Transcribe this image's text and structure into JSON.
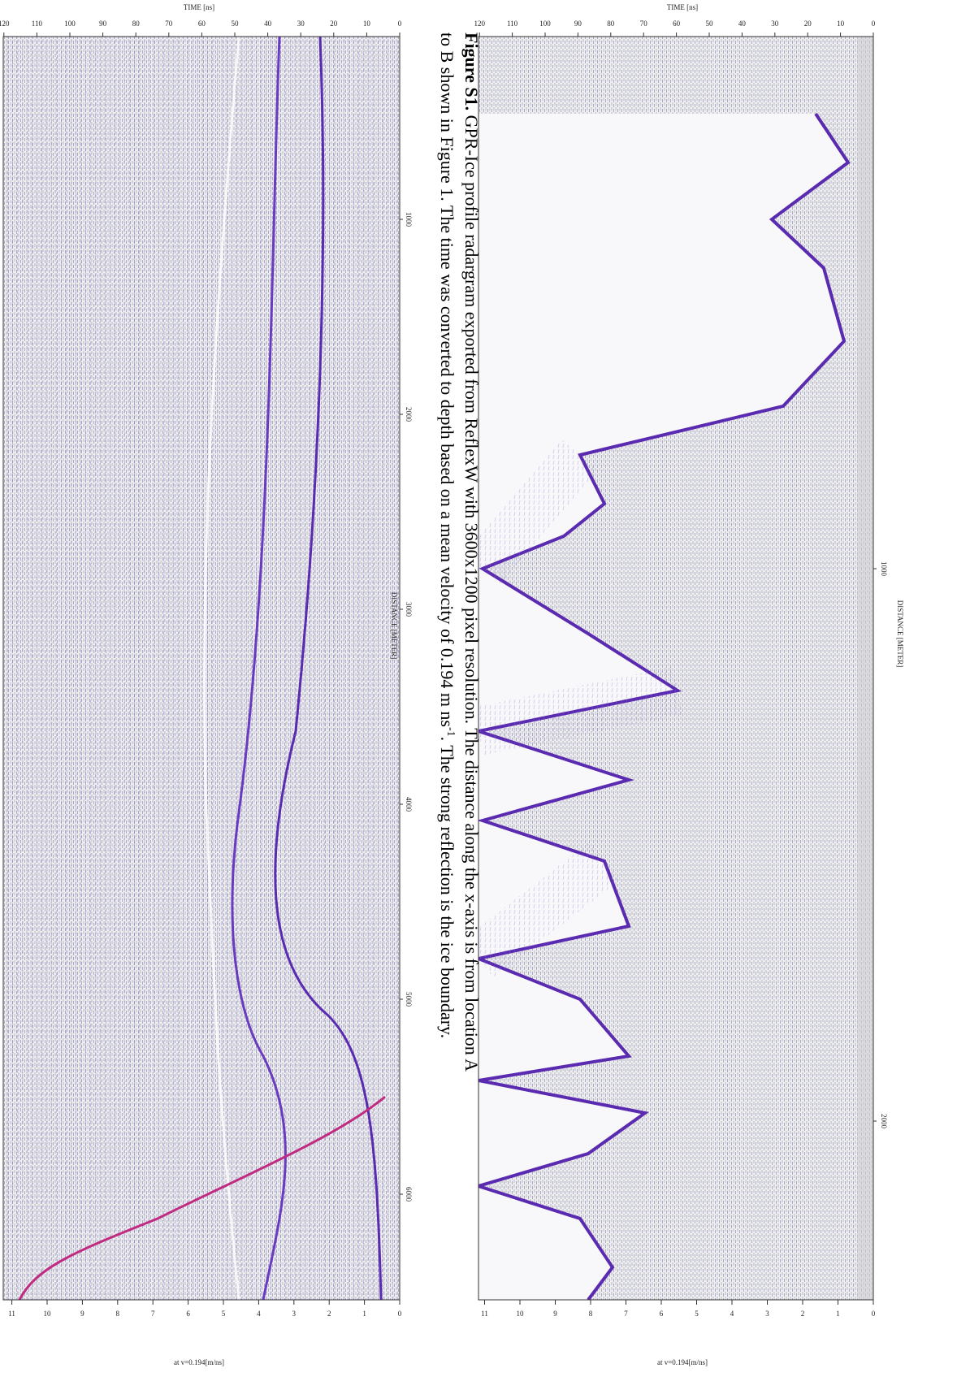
{
  "caption": {
    "label": "Figure S1.",
    "line1": "GPR-Ice profile radargram exported from ReflexW with 3600x1200 pixel resolution. The distance along the x-axis is from location A",
    "line2": "to B shown in Figure 1. The time was converted to depth based on a mean velocity of 0.194 m ns",
    "superscript": "-1",
    "line2_end": ". The strong reflection is the ice boundary."
  },
  "panels": [
    {
      "time_label": "TIME [ns]",
      "distance_label": "DISTANCE [METER]",
      "depth_label": "at v=0.194[m/ns]",
      "time_ticks": [
        0,
        10,
        20,
        30,
        40,
        50,
        60,
        70,
        80,
        90,
        100,
        110,
        120
      ],
      "distance_ticks": [
        1000,
        2000
      ],
      "depth_ticks": [
        0,
        1,
        2,
        3,
        4,
        5,
        6,
        7,
        8,
        9,
        10,
        11
      ]
    },
    {
      "time_label": "TIME [ns]",
      "distance_label": "DISTANCE [METER]",
      "depth_label": "at v=0.194[m/ns]",
      "time_ticks": [
        0,
        10,
        20,
        30,
        40,
        50,
        60,
        70,
        80,
        90,
        100,
        110,
        120
      ],
      "distance_ticks": [
        1000,
        2000,
        3000,
        4000,
        5000,
        6000
      ],
      "depth_ticks": [
        0,
        1,
        2,
        3,
        4,
        5,
        6,
        7,
        8,
        9,
        10,
        11
      ]
    }
  ]
}
